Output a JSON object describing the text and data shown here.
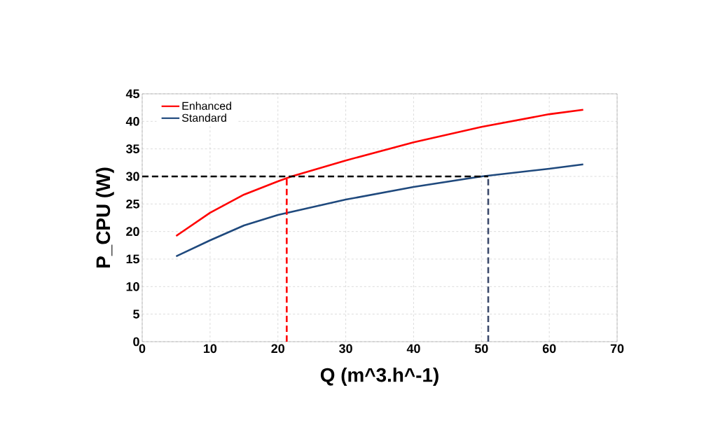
{
  "chart_data": {
    "type": "line",
    "xlabel": "Q (m^3.h^-1)",
    "ylabel": "P_CPU (W)",
    "xlim": [
      0,
      70
    ],
    "ylim": [
      0,
      45
    ],
    "xticks": [
      0,
      10,
      20,
      30,
      40,
      50,
      60,
      70
    ],
    "yticks": [
      0,
      5,
      10,
      15,
      20,
      25,
      30,
      35,
      40,
      45
    ],
    "grid": true,
    "legend": "top left",
    "marker": "none",
    "series": [
      {
        "name": "Enhanced",
        "color": "#ff0000",
        "x": [
          5,
          10,
          15,
          20,
          22,
          30,
          40,
          50,
          60,
          65
        ],
        "values": [
          19.2,
          23.4,
          26.7,
          29.1,
          30,
          32.9,
          36.2,
          39.0,
          41.3,
          42.1
        ]
      },
      {
        "name": "Standard",
        "color": "#1f497d",
        "x": [
          5,
          10,
          15,
          20,
          30,
          40,
          50,
          60,
          65
        ],
        "values": [
          15.5,
          18.4,
          21.1,
          23.0,
          25.8,
          28.1,
          30.0,
          31.4,
          32.2
        ]
      },
      {
        "color": "#000000",
        "line_style": "dashed",
        "x": [
          0,
          51
        ],
        "values": [
          30,
          30
        ]
      },
      {
        "color": "#ff0000",
        "line_style": "dashed",
        "x": [
          21.3,
          21.3
        ],
        "values": [
          0,
          30
        ]
      },
      {
        "color": "#3b4a6b",
        "line_style": "dashed",
        "x": [
          51,
          51
        ],
        "values": [
          0,
          30
        ]
      }
    ]
  }
}
